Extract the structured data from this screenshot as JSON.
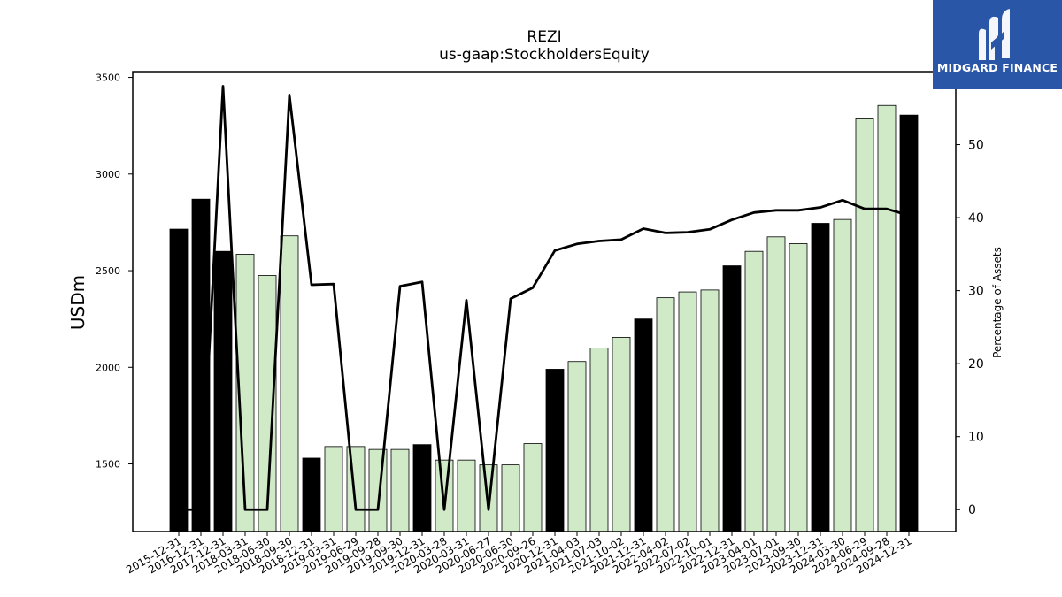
{
  "chart_data": {
    "type": "bar",
    "title": "REZI",
    "subtitle": "us-gaap:StockholdersEquity",
    "ylabel": "USDm",
    "y2label": "Percentage of Assets",
    "ylim": [
      1150,
      3530
    ],
    "y2lim": [
      -3,
      60
    ],
    "yticks": [
      1500,
      2000,
      2500,
      3000,
      3500
    ],
    "y2ticks": [
      0,
      10,
      20,
      30,
      40,
      50
    ],
    "categories": [
      "2015-12-31",
      "2016-12-31",
      "2017-12-31",
      "2018-03-31",
      "2018-06-30",
      "2018-09-30",
      "2018-12-31",
      "2019-03-31",
      "2019-06-29",
      "2019-09-28",
      "2019-09-30",
      "2019-12-31",
      "2020-03-28",
      "2020-03-31",
      "2020-06-27",
      "2020-06-30",
      "2020-09-26",
      "2020-12-31",
      "2021-04-03",
      "2021-07-03",
      "2021-10-02",
      "2021-12-31",
      "2022-04-02",
      "2022-07-02",
      "2022-10-01",
      "2022-12-31",
      "2023-04-01",
      "2023-07-01",
      "2023-09-30",
      "2023-12-31",
      "2024-03-30",
      "2024-06-29",
      "2024-09-28",
      "2024-12-31"
    ],
    "series": [
      {
        "kind": "bar",
        "values": [
          2715,
          2870,
          2600,
          2585,
          2475,
          2680,
          1530,
          1590,
          1590,
          1575,
          1575,
          1600,
          1520,
          1520,
          1495,
          1495,
          1605,
          1990,
          2030,
          2100,
          2155,
          2250,
          2360,
          2390,
          2400,
          2525,
          2600,
          2675,
          2640,
          2745,
          2765,
          3290,
          3355,
          3305
        ],
        "annual": [
          true,
          true,
          true,
          false,
          false,
          false,
          true,
          false,
          false,
          false,
          false,
          true,
          false,
          false,
          false,
          false,
          false,
          true,
          false,
          false,
          false,
          true,
          false,
          false,
          false,
          true,
          false,
          false,
          false,
          true,
          false,
          false,
          false,
          true
        ]
      },
      {
        "kind": "line",
        "axis": "right",
        "values": [
          0,
          0,
          58,
          0,
          0,
          56.8,
          30.8,
          30.9,
          0,
          0,
          30.6,
          31.2,
          0,
          28.7,
          0,
          28.9,
          30.4,
          35.5,
          36.4,
          36.8,
          37.0,
          38.5,
          37.9,
          38.0,
          38.4,
          39.7,
          40.7,
          41.0,
          41.0,
          41.4,
          42.4,
          41.2,
          41.2,
          40.3
        ]
      }
    ],
    "colors": {
      "annual": "#000000",
      "quarterly": "#d0eac8",
      "line": "#000000"
    }
  },
  "logo": {
    "text": "MIDGARD FINANCE"
  }
}
